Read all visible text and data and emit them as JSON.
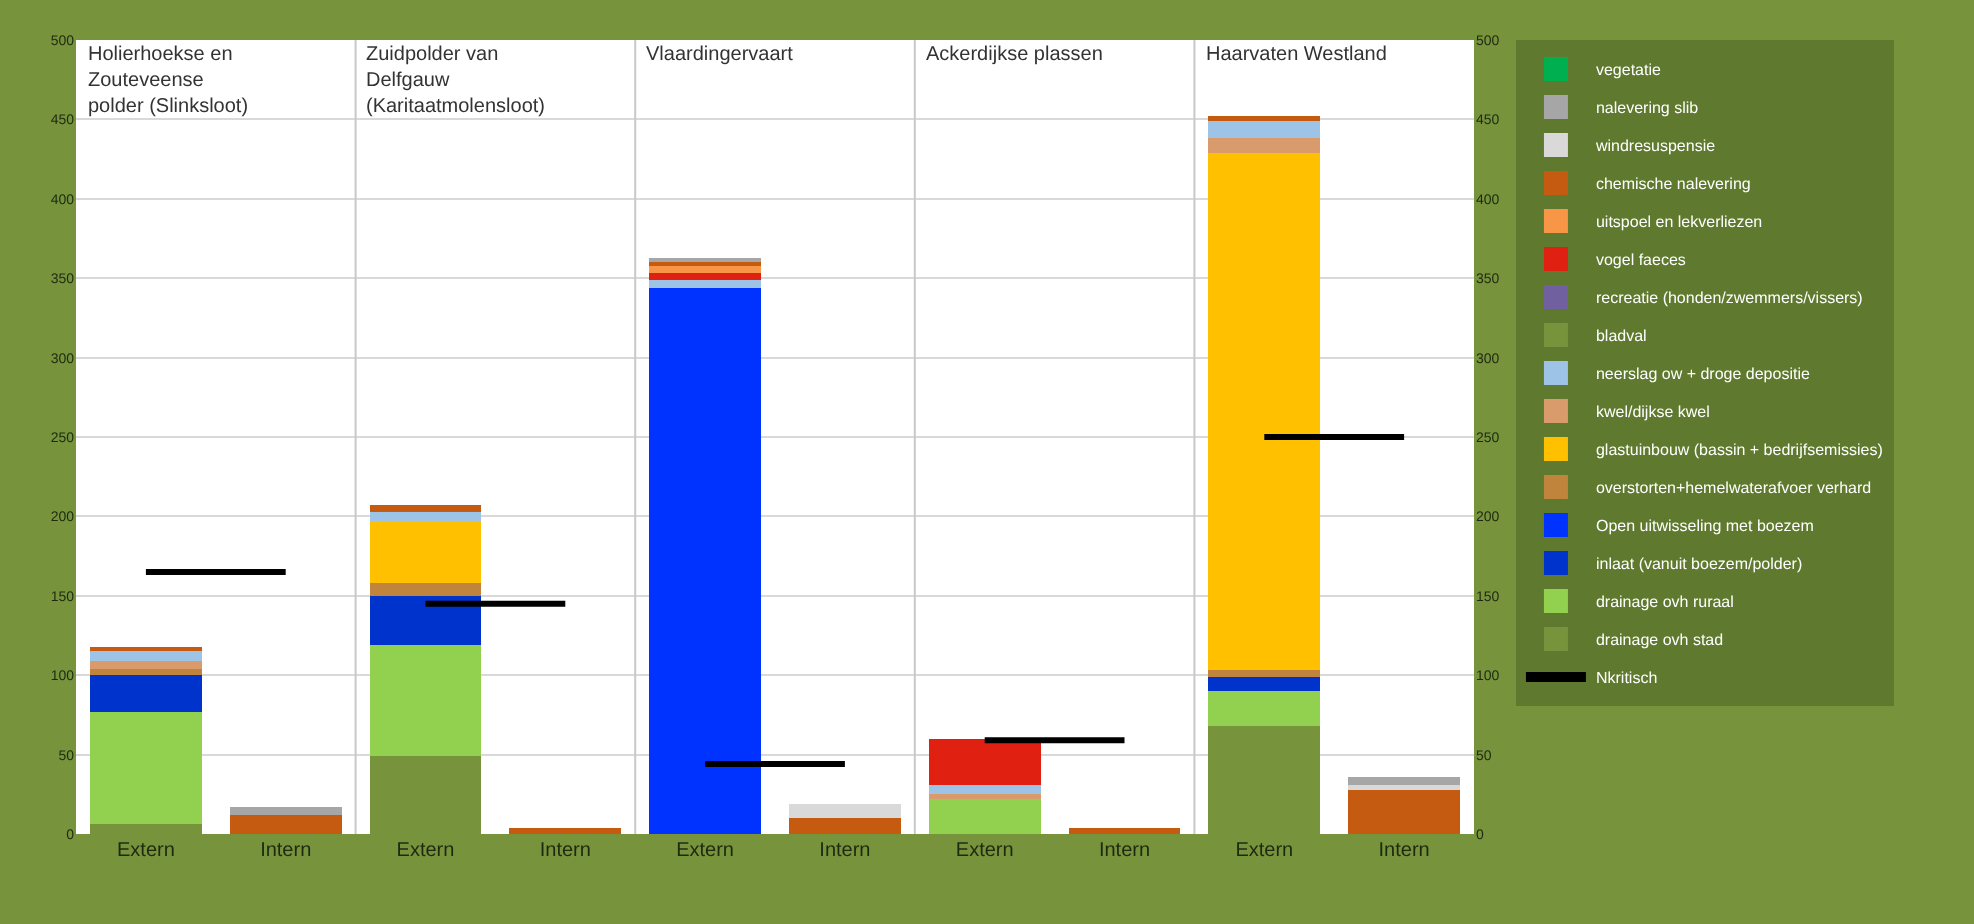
{
  "chart_data": {
    "type": "bar",
    "stacked": true,
    "categories": [
      "Extern",
      "Intern",
      "Extern",
      "Intern",
      "Extern",
      "Intern",
      "Extern",
      "Intern",
      "Extern",
      "Intern"
    ],
    "annotations": [
      "Holierhoekse en\nZouteveense\npolder (Slinksloot)",
      "Zuidpolder van\nDelfgauw\n(Karitaatmolensloot)",
      "Vlaardingervaart",
      "Ackerdijkse plassen",
      "Haarvaten Westland"
    ],
    "ylim": [
      0,
      500
    ],
    "yticks": [
      0,
      50,
      100,
      150,
      200,
      250,
      300,
      350,
      400,
      450,
      500
    ],
    "y2lim": [
      0,
      500
    ],
    "y2ticks": [
      0,
      50,
      100,
      150,
      200,
      250,
      300,
      350,
      400,
      450,
      500
    ],
    "grid": "y",
    "legend": "right",
    "series": [
      {
        "name": "Nkritisch",
        "type": "line",
        "color": "#000000",
        "line_style": "solid",
        "marker": "none",
        "values": [
          165,
          165,
          145,
          145,
          44,
          44,
          59,
          59,
          250,
          250
        ]
      },
      {
        "name": "drainage ovh stad",
        "color": "#77933c",
        "values": [
          6,
          null,
          49,
          null,
          null,
          null,
          null,
          null,
          68,
          null
        ]
      },
      {
        "name": "drainage ovh ruraal",
        "color": "#92d050",
        "values": [
          71,
          null,
          70,
          null,
          null,
          null,
          22,
          null,
          22,
          null
        ]
      },
      {
        "name": "inlaat (vanuit boezem/polder)",
        "color": "#0033cc",
        "values": [
          23,
          null,
          31,
          null,
          null,
          null,
          null,
          null,
          9,
          null
        ]
      },
      {
        "name": "Open uitwisseling met boezem",
        "color": "#0033ff",
        "values": [
          null,
          null,
          null,
          null,
          344,
          null,
          null,
          null,
          null,
          null
        ]
      },
      {
        "name": "overstorten+hemelwaterafvoer verhard",
        "color": "#c0843c",
        "values": [
          4,
          null,
          8,
          null,
          null,
          null,
          null,
          null,
          4,
          null
        ]
      },
      {
        "name": "glastuinbouw (bassin + bedrijfsemissies)",
        "color": "#ffc000",
        "values": [
          null,
          null,
          39,
          null,
          null,
          null,
          null,
          null,
          326,
          null
        ]
      },
      {
        "name": "kwel/dijkse kwel",
        "color": "#d99a6c",
        "values": [
          5,
          null,
          null,
          null,
          null,
          null,
          3,
          null,
          9,
          null
        ]
      },
      {
        "name": "neerslag ow + droge depositie",
        "color": "#9dc3e6",
        "values": [
          6,
          null,
          6,
          null,
          5,
          null,
          6,
          null,
          11,
          null
        ]
      },
      {
        "name": "bladval",
        "color": "#77933c",
        "values": [
          null,
          null,
          null,
          null,
          null,
          null,
          null,
          null,
          null,
          null
        ]
      },
      {
        "name": "recreatie (honden/zwemmers/vissers)",
        "color": "#7060a0",
        "values": [
          null,
          null,
          null,
          null,
          null,
          null,
          null,
          null,
          null,
          null
        ]
      },
      {
        "name": "vogel faeces",
        "color": "#e02010",
        "values": [
          null,
          null,
          null,
          null,
          4,
          null,
          29,
          null,
          null,
          null
        ]
      },
      {
        "name": "uitspoel en lekverliezen",
        "color": "#f79646",
        "values": [
          null,
          null,
          null,
          null,
          5,
          null,
          null,
          null,
          null,
          null
        ]
      },
      {
        "name": "chemische nalevering",
        "color": "#c55a11",
        "values": [
          3,
          12,
          4,
          4,
          3,
          10,
          null,
          4,
          3,
          28
        ]
      },
      {
        "name": "windresuspensie",
        "color": "#d9d9d9",
        "values": [
          null,
          null,
          null,
          null,
          null,
          9,
          null,
          null,
          null,
          3
        ]
      },
      {
        "name": "nalevering slib",
        "color": "#a6a6a6",
        "values": [
          null,
          5,
          null,
          null,
          2,
          null,
          null,
          null,
          null,
          5
        ]
      },
      {
        "name": "vegetatie",
        "color": "#00b050",
        "values": [
          null,
          null,
          null,
          null,
          null,
          null,
          null,
          null,
          null,
          null
        ]
      }
    ]
  }
}
